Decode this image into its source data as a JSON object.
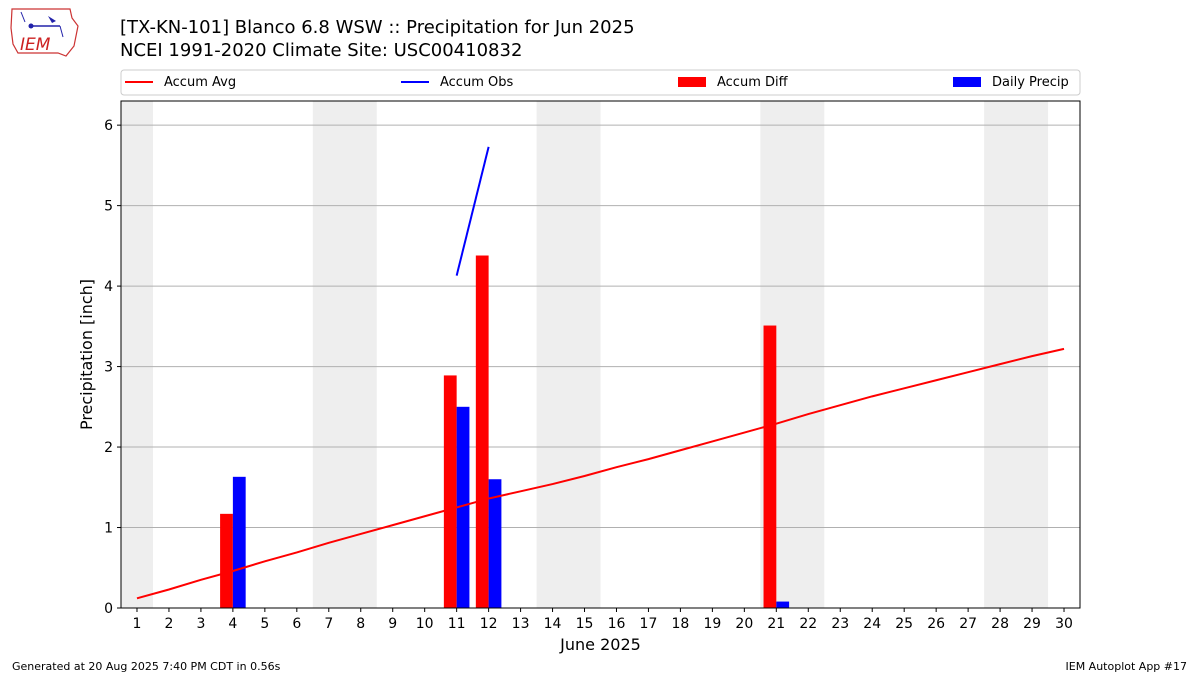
{
  "header": {
    "title_line1": "[TX-KN-101] Blanco 6.8 WSW :: Precipitation for Jun 2025",
    "title_line2": "NCEI 1991-2020 Climate Site: USC00410832",
    "logo_text": "IEM"
  },
  "footer": {
    "generated": "Generated at 20 Aug 2025 7:40 PM CDT in 0.56s",
    "app": "IEM Autoplot App #17"
  },
  "colors": {
    "avg": "#ff0000",
    "obs": "#0000ff",
    "diff": "#ff0000",
    "daily": "#0000ff",
    "weekend_band": "#eeeeee",
    "grid": "#b0b0b0"
  },
  "chart_data": {
    "type": "bar",
    "xlabel": "June 2025",
    "ylabel": "Precipitation [inch]",
    "xlim": [
      0.5,
      30.5
    ],
    "ylim": [
      0,
      6.3
    ],
    "x_ticks": [
      1,
      2,
      3,
      4,
      5,
      6,
      7,
      8,
      9,
      10,
      11,
      12,
      13,
      14,
      15,
      16,
      17,
      18,
      19,
      20,
      21,
      22,
      23,
      24,
      25,
      26,
      27,
      28,
      29,
      30
    ],
    "y_ticks": [
      0,
      1,
      2,
      3,
      4,
      5,
      6
    ],
    "grid": "horizontal",
    "legend_position": "top",
    "weekend_bands": [
      [
        0.5,
        1.5
      ],
      [
        6.5,
        8.5
      ],
      [
        13.5,
        15.5
      ],
      [
        20.5,
        22.5
      ],
      [
        27.5,
        29.5
      ]
    ],
    "series": [
      {
        "name": "Accum Avg",
        "kind": "line",
        "x": [
          1,
          2,
          3,
          4,
          5,
          6,
          7,
          8,
          9,
          10,
          11,
          12,
          13,
          14,
          15,
          16,
          17,
          18,
          19,
          20,
          21,
          22,
          23,
          24,
          25,
          26,
          27,
          28,
          29,
          30
        ],
        "values": [
          0.12,
          0.23,
          0.35,
          0.46,
          0.58,
          0.69,
          0.81,
          0.92,
          1.03,
          1.14,
          1.25,
          1.36,
          1.45,
          1.54,
          1.64,
          1.75,
          1.85,
          1.96,
          2.07,
          2.18,
          2.29,
          2.41,
          2.52,
          2.63,
          2.73,
          2.83,
          2.93,
          3.03,
          3.13,
          3.22
        ]
      },
      {
        "name": "Accum Obs",
        "kind": "line",
        "x": [
          11,
          12
        ],
        "values": [
          4.13,
          5.73
        ]
      },
      {
        "name": "Accum Diff",
        "kind": "bar",
        "offset": -0.2,
        "x": [
          4,
          11,
          12,
          21
        ],
        "values": [
          1.17,
          2.89,
          4.38,
          3.51
        ]
      },
      {
        "name": "Daily Precip",
        "kind": "bar",
        "offset": 0.2,
        "x": [
          4,
          11,
          12,
          21
        ],
        "values": [
          1.63,
          2.5,
          1.6,
          0.08
        ]
      }
    ]
  }
}
